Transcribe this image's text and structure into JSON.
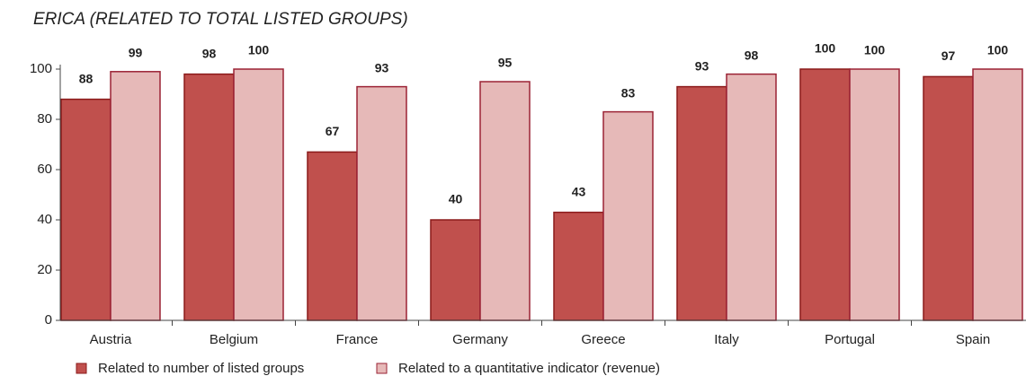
{
  "chart_data": {
    "type": "bar",
    "title": "ERICA (RELATED TO TOTAL LISTED GROUPS)",
    "categories": [
      "Austria",
      "Belgium",
      "France",
      "Germany",
      "Greece",
      "Italy",
      "Portugal",
      "Spain"
    ],
    "series": [
      {
        "name": "Related to number of listed groups",
        "color": "#c0504d",
        "values": [
          88,
          98,
          67,
          40,
          43,
          93,
          100,
          97
        ]
      },
      {
        "name": "Related to a quantitative indicator (revenue)",
        "color": "#e6b9b8",
        "values": [
          99,
          100,
          93,
          95,
          83,
          98,
          100,
          100
        ]
      }
    ],
    "ylim": [
      0,
      100
    ],
    "yticks": [
      0,
      20,
      40,
      60,
      80,
      100
    ],
    "grid": false,
    "legend": "bottom"
  }
}
